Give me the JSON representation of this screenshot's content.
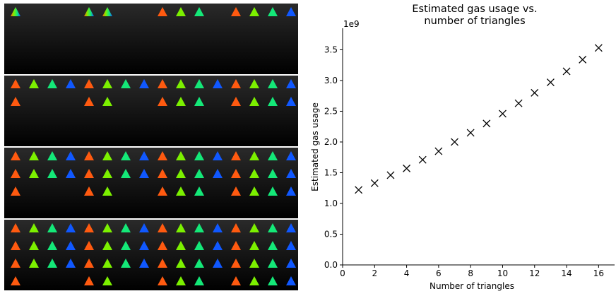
{
  "triangle_grid": {
    "rows": 4,
    "cols": 4,
    "cell_triangle_counts": [
      [
        1,
        2,
        3,
        4
      ],
      [
        5,
        6,
        7,
        8
      ],
      [
        9,
        10,
        11,
        12
      ],
      [
        13,
        14,
        15,
        16
      ]
    ],
    "triangle_colors": [
      "#ff5a10",
      "#7cf000",
      "#14e878",
      "#1058ff"
    ],
    "single_triangle_style": "rainbow-gradient",
    "cell_background_top": "#2a2a2a",
    "cell_background_bottom": "#000000"
  },
  "chart_data": {
    "type": "scatter",
    "title": "Estimated gas usage vs.\nnumber of triangles",
    "xlabel": "Number of triangles",
    "ylabel": "Estimated gas usage",
    "offset_label": "1e9",
    "xlim": [
      0,
      17
    ],
    "ylim": [
      0,
      3.85
    ],
    "xticks": [
      0,
      2,
      4,
      6,
      8,
      10,
      12,
      14,
      16
    ],
    "yticks": [
      0.0,
      0.5,
      1.0,
      1.5,
      2.0,
      2.5,
      3.0,
      3.5
    ],
    "ytick_labels": [
      "0.0",
      "0.5",
      "1.0",
      "1.5",
      "2.0",
      "2.5",
      "3.0",
      "3.5"
    ],
    "marker": "x",
    "marker_color": "#000000",
    "grid": false,
    "x": [
      1,
      2,
      3,
      4,
      5,
      6,
      7,
      8,
      9,
      10,
      11,
      12,
      13,
      14,
      15,
      16
    ],
    "y": [
      1.22,
      1.33,
      1.46,
      1.57,
      1.71,
      1.85,
      2.0,
      2.15,
      2.3,
      2.46,
      2.63,
      2.8,
      2.97,
      3.15,
      3.34,
      3.53
    ]
  }
}
